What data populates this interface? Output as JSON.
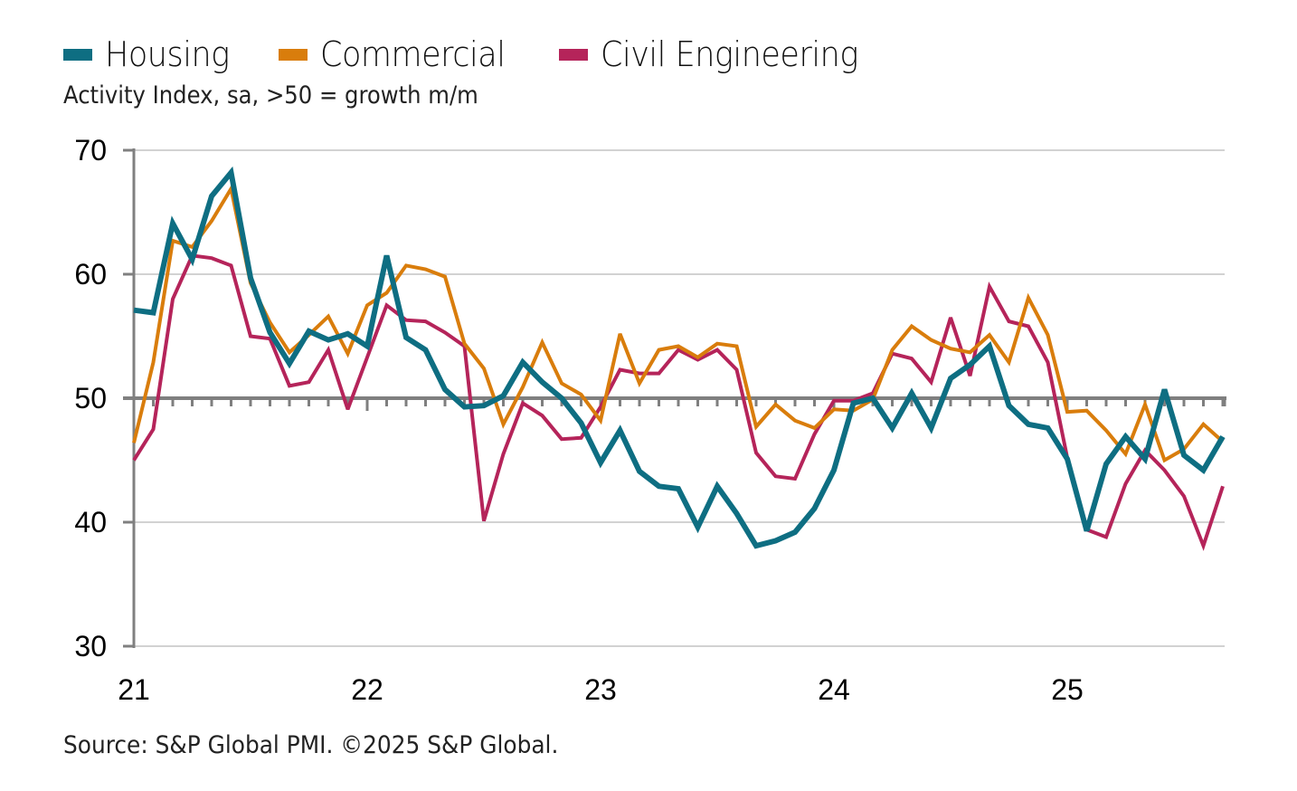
{
  "chart_data": {
    "type": "line",
    "title": "",
    "subtitle": "Activity Index, sa, >50 = growth m/m",
    "source": "Source: S&P Global PMI. ©2025 S&P Global.",
    "xlabel": "",
    "ylabel": "",
    "ylim": [
      30,
      70
    ],
    "yticks": [
      30,
      40,
      50,
      60,
      70
    ],
    "reference_line": 50,
    "x_start": "2021-01",
    "x_end": "2025-09",
    "frequency": "monthly",
    "xtick_labels": [
      "21",
      "22",
      "23",
      "24",
      "25"
    ],
    "grid": true,
    "legend_position": "top-left",
    "series": [
      {
        "name": "Housing",
        "color": "#0e6e82",
        "values": [
          57.1,
          56.9,
          64.1,
          61.2,
          66.3,
          68.2,
          59.7,
          55.3,
          52.8,
          55.4,
          54.7,
          55.2,
          54.2,
          61.5,
          54.9,
          53.9,
          50.7,
          49.3,
          49.4,
          50.2,
          52.9,
          51.3,
          50.0,
          48.0,
          44.8,
          47.4,
          44.1,
          42.9,
          42.7,
          39.6,
          42.9,
          40.7,
          38.1,
          38.5,
          39.2,
          41.1,
          44.2,
          49.6,
          50.0,
          47.6,
          50.4,
          47.6,
          51.6,
          52.7,
          54.2,
          49.4,
          47.9,
          47.6,
          45.1,
          39.3,
          44.7,
          46.9,
          45.1,
          50.7,
          45.4,
          44.2,
          46.9
        ]
      },
      {
        "name": "Commercial",
        "color": "#d97d0c",
        "values": [
          46.4,
          52.9,
          62.7,
          62.2,
          64.3,
          66.9,
          59.3,
          56.1,
          53.7,
          55.1,
          56.6,
          53.6,
          57.5,
          58.5,
          60.7,
          60.4,
          59.8,
          54.4,
          52.4,
          47.9,
          50.9,
          54.5,
          51.2,
          50.3,
          48.2,
          55.2,
          51.2,
          53.9,
          54.2,
          53.3,
          54.4,
          54.2,
          47.7,
          49.5,
          48.2,
          47.6,
          49.1,
          49.0,
          49.9,
          53.9,
          55.8,
          54.7,
          54.0,
          53.7,
          55.1,
          52.9,
          58.1,
          55.1,
          48.9,
          49.0,
          47.4,
          45.5,
          49.5,
          45.0,
          45.9,
          47.9,
          46.5
        ]
      },
      {
        "name": "Civil Engineering",
        "color": "#b5245a",
        "values": [
          45.0,
          47.5,
          58.0,
          61.5,
          61.3,
          60.7,
          55.0,
          54.8,
          51.0,
          51.3,
          53.9,
          49.1,
          53.3,
          57.5,
          56.3,
          56.2,
          55.3,
          54.2,
          40.1,
          45.5,
          49.6,
          48.6,
          46.7,
          46.8,
          49.3,
          52.3,
          52.0,
          52.0,
          53.9,
          53.1,
          53.9,
          52.3,
          45.6,
          43.7,
          43.5,
          47.1,
          49.8,
          49.8,
          50.4,
          53.6,
          53.2,
          51.3,
          56.5,
          51.8,
          59.0,
          56.2,
          55.8,
          52.9,
          45.2,
          39.4,
          38.8,
          43.1,
          45.8,
          44.2,
          42.1,
          38.1,
          42.9
        ]
      }
    ]
  }
}
